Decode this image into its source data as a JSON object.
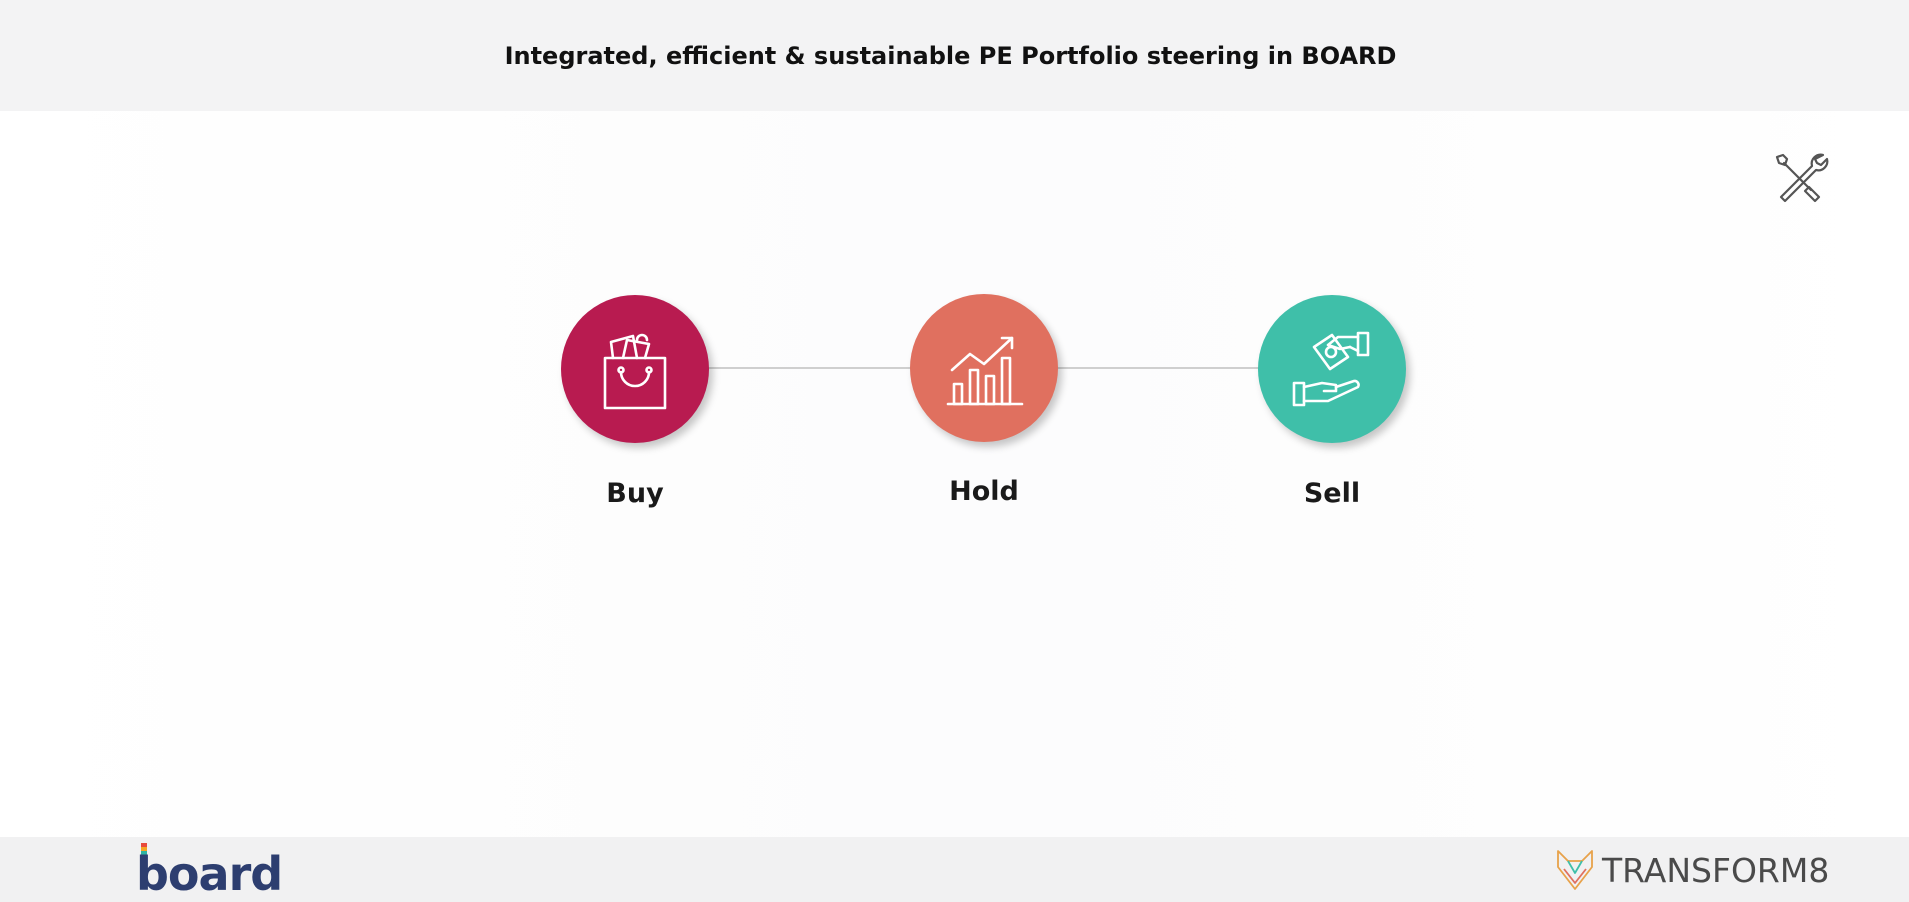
{
  "header": {
    "title": "Integrated, efficient & sustainable PE Portfolio steering in BOARD"
  },
  "toolbar": {
    "tools_icon": "tools-icon"
  },
  "stages": [
    {
      "label": "Buy",
      "icon": "shopping-bag-icon",
      "color": "#b81b50"
    },
    {
      "label": "Hold",
      "icon": "growth-chart-icon",
      "color": "#e0705f"
    },
    {
      "label": "Sell",
      "icon": "money-handshake-icon",
      "color": "#3fbfa9"
    }
  ],
  "footer": {
    "left_logo": "board",
    "right_logo": "TRANSFORM8"
  },
  "colors": {
    "header_bg": "#f3f3f4",
    "footer_bg": "#f1f1f2",
    "board_brand": "#2d3e70"
  }
}
